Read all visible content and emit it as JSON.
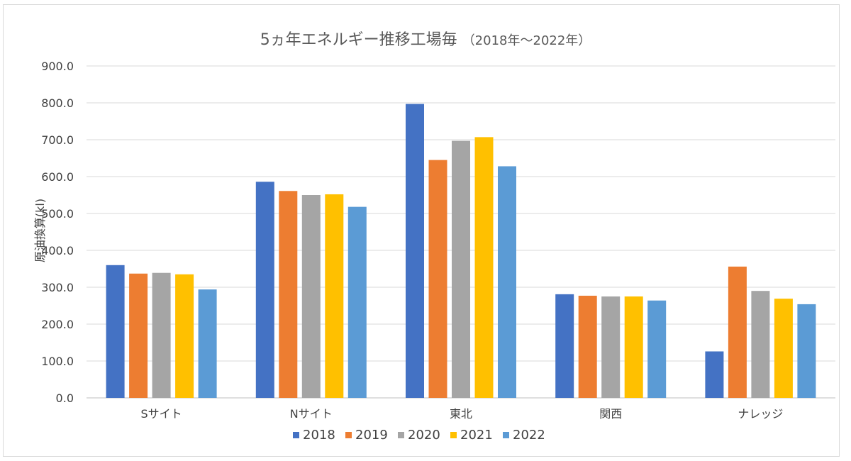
{
  "chart_data": {
    "type": "bar",
    "title": "5ヵ年エネルギー推移工場毎",
    "subtitle": "（2018年～2022年）",
    "xlabel": "",
    "ylabel": "原油換算(kl)",
    "ylim": [
      0,
      900
    ],
    "yticks": [
      "0.0",
      "100.0",
      "200.0",
      "300.0",
      "400.0",
      "500.0",
      "600.0",
      "700.0",
      "800.0",
      "900.0"
    ],
    "grid": true,
    "legend_position": "bottom",
    "categories": [
      "Sサイト",
      "Nサイト",
      "東北",
      "関西",
      "ナレッジ"
    ],
    "series": [
      {
        "name": "2018",
        "color": "#4472C4",
        "values": [
          360,
          586,
          797,
          281,
          126
        ]
      },
      {
        "name": "2019",
        "color": "#ED7D31",
        "values": [
          337,
          561,
          645,
          277,
          356
        ]
      },
      {
        "name": "2020",
        "color": "#A5A5A5",
        "values": [
          339,
          550,
          697,
          275,
          290
        ]
      },
      {
        "name": "2021",
        "color": "#FFC000",
        "values": [
          335,
          552,
          707,
          275,
          269
        ]
      },
      {
        "name": "2022",
        "color": "#5B9BD5",
        "values": [
          294,
          518,
          628,
          264,
          254
        ]
      }
    ]
  }
}
